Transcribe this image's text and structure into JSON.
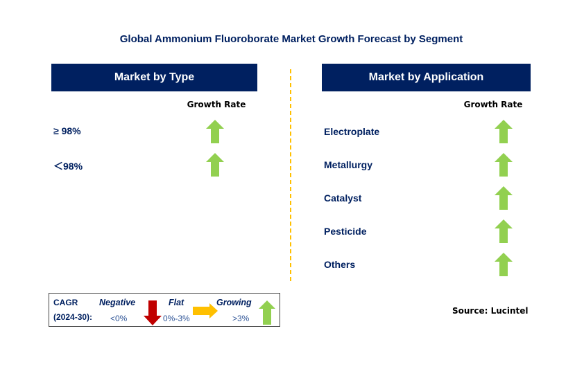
{
  "title": "Global Ammonium Fluoroborate Market Growth Forecast by Segment",
  "left": {
    "header": "Market by Type",
    "growth_rate_label": "Growth Rate",
    "items": [
      {
        "label": "≥ 98%",
        "trend": "growing"
      },
      {
        "label": "＜98%",
        "trend": "growing"
      }
    ]
  },
  "right": {
    "header": "Market by Application",
    "growth_rate_label": "Growth Rate",
    "items": [
      {
        "label": "Electroplate",
        "trend": "growing"
      },
      {
        "label": "Metallurgy",
        "trend": "growing"
      },
      {
        "label": "Catalyst",
        "trend": "growing"
      },
      {
        "label": "Pesticide",
        "trend": "growing"
      },
      {
        "label": "Others",
        "trend": "growing"
      }
    ]
  },
  "legend": {
    "cagr": "CAGR",
    "period": "(2024-30):",
    "negative": "Negative",
    "negative_range": "<0%",
    "flat": "Flat",
    "flat_range": "0%-3%",
    "growing": "Growing",
    "growing_range": ">3%"
  },
  "source": "Source: Lucintel",
  "colors": {
    "navy": "#002060",
    "growing": "#92D050",
    "negative": "#C00000",
    "flat": "#FFC000",
    "divider": "#FFC000"
  }
}
